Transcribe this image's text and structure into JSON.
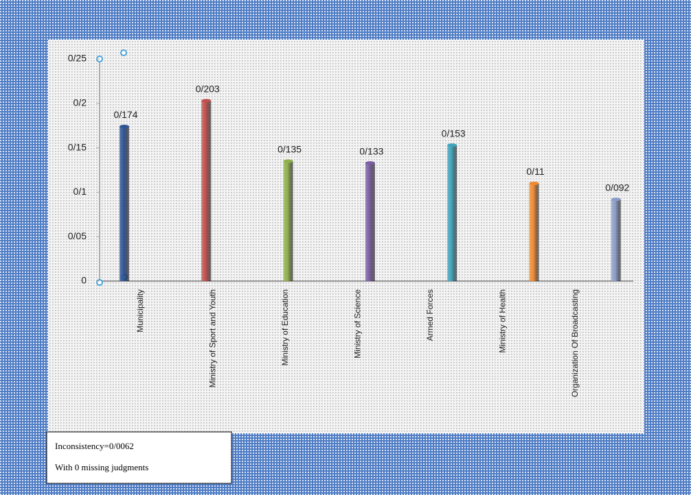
{
  "chart_data": {
    "type": "bar",
    "categories": [
      "Municipality",
      "Ministry of Sport and Youth",
      "Ministry of Education",
      "Ministry of Science",
      "Armed Forces",
      "Ministry of Health",
      "Organization Of Broadcasting"
    ],
    "values": [
      0.174,
      0.203,
      0.135,
      0.133,
      0.153,
      0.11,
      0.092
    ],
    "value_labels": [
      "0/174",
      "0/203",
      "0/135",
      "0/133",
      "0/153",
      "0/11",
      "0/092"
    ],
    "colors": [
      "#2f5597",
      "#c0504d",
      "#8fb04a",
      "#7b5ea3",
      "#3fa3bd",
      "#f08a30",
      "#8a9cc8"
    ],
    "ylim": [
      0,
      0.25
    ],
    "yticks": [
      0,
      {
        "value": 0.05,
        "label": "0/05"
      },
      {
        "value": 0.1,
        "label": "0/1"
      },
      {
        "value": 0.15,
        "label": "0/15"
      },
      {
        "value": 0.2,
        "label": "0/2"
      },
      {
        "value": 0.25,
        "label": "0/25"
      }
    ],
    "annotations": [
      "Inconsistency=0/0062",
      "With 0  missing judgments"
    ]
  }
}
